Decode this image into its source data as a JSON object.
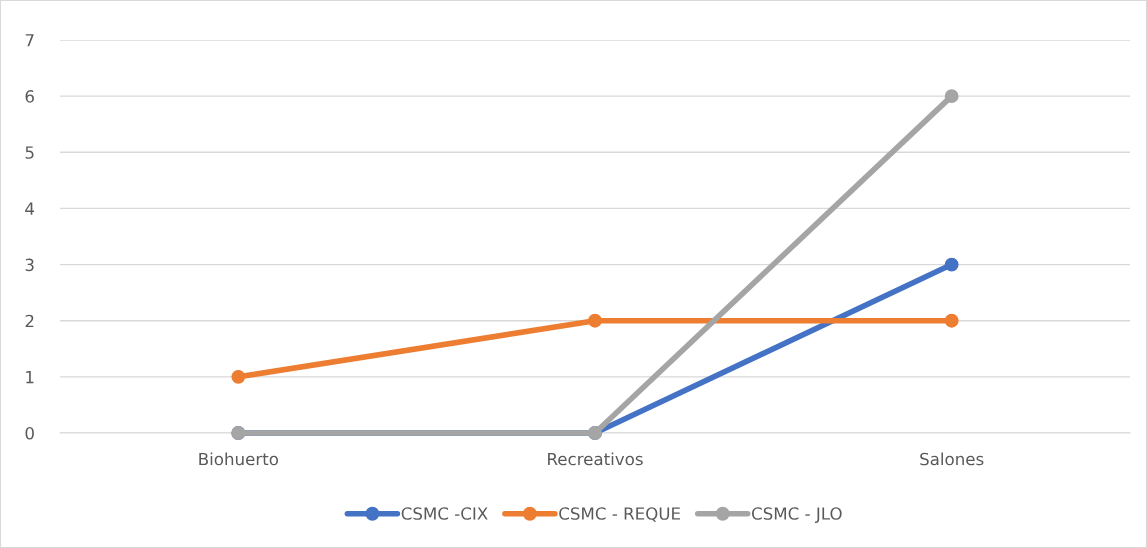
{
  "chart_data": {
    "type": "line",
    "categories": [
      "Biohuerto",
      "Recreativos",
      "Salones"
    ],
    "series": [
      {
        "name": "CSMC -CIX",
        "color": "#4472c4",
        "values": [
          0,
          0,
          3
        ]
      },
      {
        "name": "CSMC - REQUE",
        "color": "#ed7d31",
        "values": [
          1,
          2,
          2
        ]
      },
      {
        "name": "CSMC - JLO",
        "color": "#a5a5a5",
        "values": [
          0,
          0,
          6
        ]
      }
    ],
    "ylim": [
      0,
      7
    ],
    "yticks": [
      0,
      1,
      2,
      3,
      4,
      5,
      6,
      7
    ],
    "grid": "y",
    "legend": "bottom",
    "marker": "circle",
    "line_style": "solid"
  }
}
